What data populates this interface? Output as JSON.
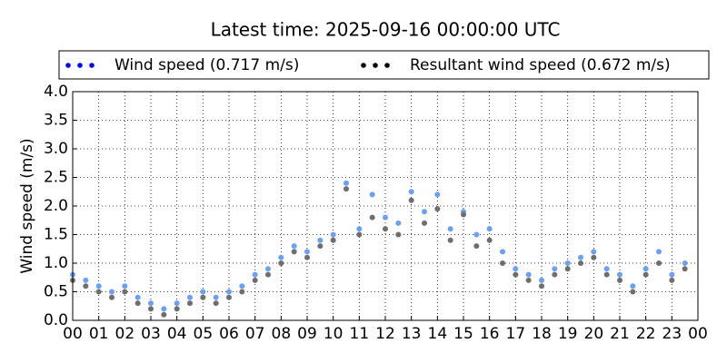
{
  "chart_data": {
    "type": "scatter",
    "title": "Latest time: 2025-09-16 00:00:00 UTC",
    "ylabel": "Wind speed (m/s)",
    "x": [
      0,
      0.5,
      1,
      1.5,
      2,
      2.5,
      3,
      3.5,
      4,
      4.5,
      5,
      5.5,
      6,
      6.5,
      7,
      7.5,
      8,
      8.5,
      9,
      9.5,
      10,
      10.5,
      11,
      11.5,
      12,
      12.5,
      13,
      13.5,
      14,
      14.5,
      15,
      15.5,
      16,
      16.5,
      17,
      17.5,
      18,
      18.5,
      19,
      19.5,
      20,
      20.5,
      21,
      21.5,
      22,
      22.5,
      23,
      23.5
    ],
    "series": [
      {
        "name": "Wind speed (0.717 m/s)",
        "color": "#0000ff",
        "marker_color": "#6aa0f8",
        "values": [
          0.8,
          0.7,
          0.6,
          0.5,
          0.6,
          0.4,
          0.3,
          0.2,
          0.3,
          0.4,
          0.5,
          0.4,
          0.5,
          0.6,
          0.8,
          0.9,
          1.1,
          1.3,
          1.2,
          1.4,
          1.5,
          2.4,
          1.6,
          2.2,
          1.8,
          1.7,
          2.25,
          1.9,
          2.2,
          1.6,
          1.9,
          1.5,
          1.6,
          1.2,
          0.9,
          0.8,
          0.7,
          0.9,
          1.0,
          1.1,
          1.2,
          0.9,
          0.8,
          0.6,
          0.9,
          1.2,
          0.8,
          1.0
        ]
      },
      {
        "name": "Resultant wind speed (0.672 m/s)",
        "color": "#000000",
        "marker_color": "#6e6e6e",
        "values": [
          0.7,
          0.6,
          0.5,
          0.4,
          0.5,
          0.3,
          0.2,
          0.1,
          0.2,
          0.3,
          0.4,
          0.3,
          0.4,
          0.5,
          0.7,
          0.8,
          1.0,
          1.2,
          1.1,
          1.3,
          1.4,
          2.3,
          1.5,
          1.8,
          1.6,
          1.5,
          2.1,
          1.7,
          1.95,
          1.4,
          1.85,
          1.3,
          1.4,
          1.0,
          0.8,
          0.7,
          0.6,
          0.8,
          0.9,
          1.0,
          1.1,
          0.8,
          0.7,
          0.5,
          0.8,
          1.0,
          0.7,
          0.9
        ]
      }
    ],
    "xlim": [
      0,
      24
    ],
    "xticks": [
      {
        "value": 0,
        "label": "00"
      },
      {
        "value": 1,
        "label": "01"
      },
      {
        "value": 2,
        "label": "02"
      },
      {
        "value": 3,
        "label": "03"
      },
      {
        "value": 4,
        "label": "04"
      },
      {
        "value": 5,
        "label": "05"
      },
      {
        "value": 6,
        "label": "06"
      },
      {
        "value": 7,
        "label": "07"
      },
      {
        "value": 8,
        "label": "08"
      },
      {
        "value": 9,
        "label": "09"
      },
      {
        "value": 10,
        "label": "10"
      },
      {
        "value": 11,
        "label": "11"
      },
      {
        "value": 12,
        "label": "12"
      },
      {
        "value": 13,
        "label": "13"
      },
      {
        "value": 14,
        "label": "14"
      },
      {
        "value": 15,
        "label": "15"
      },
      {
        "value": 16,
        "label": "16"
      },
      {
        "value": 17,
        "label": "17"
      },
      {
        "value": 18,
        "label": "18"
      },
      {
        "value": 19,
        "label": "19"
      },
      {
        "value": 20,
        "label": "20"
      },
      {
        "value": 21,
        "label": "21"
      },
      {
        "value": 22,
        "label": "22"
      },
      {
        "value": 23,
        "label": "23"
      },
      {
        "value": 24,
        "label": "00"
      }
    ],
    "ylim": [
      0,
      4
    ],
    "yticks": [
      {
        "value": 0,
        "label": "0.0"
      },
      {
        "value": 0.5,
        "label": "0.5"
      },
      {
        "value": 1,
        "label": "1.0"
      },
      {
        "value": 1.5,
        "label": "1.5"
      },
      {
        "value": 2,
        "label": "2.0"
      },
      {
        "value": 2.5,
        "label": "2.5"
      },
      {
        "value": 3,
        "label": "3.0"
      },
      {
        "value": 3.5,
        "label": "3.5"
      },
      {
        "value": 4,
        "label": "4.0"
      }
    ],
    "grid": true,
    "legend": "top"
  }
}
